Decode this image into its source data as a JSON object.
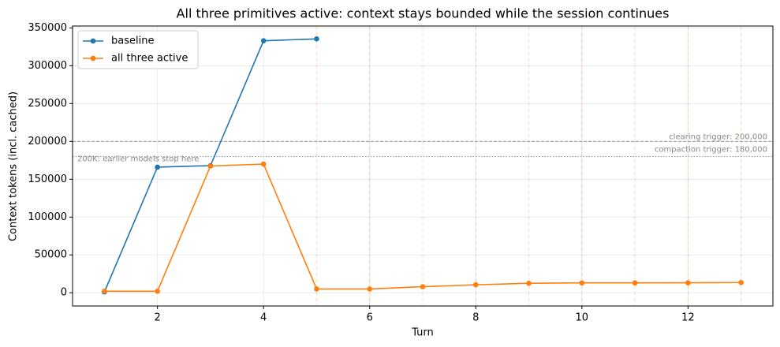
{
  "chart_data": {
    "type": "line",
    "title": "All three primitives active: context stays bounded while the session continues",
    "x_label": "Turn",
    "y_label": "Context tokens (incl. cached)",
    "x": [
      1,
      2,
      3,
      4,
      5,
      6,
      7,
      8,
      9,
      10,
      11,
      12,
      13
    ],
    "series": [
      {
        "name": "baseline",
        "color": "#1f77b4",
        "values": [
          1000,
          166000,
          168000,
          333000,
          335500,
          null,
          null,
          null,
          null,
          null,
          null,
          null,
          null
        ]
      },
      {
        "name": "all three active",
        "color": "#ff7f0e",
        "values": [
          2000,
          2000,
          167500,
          170000,
          5000,
          5000,
          8000,
          10500,
          12500,
          13000,
          13000,
          13200,
          13500
        ]
      }
    ],
    "xlim": [
      0.4,
      13.6
    ],
    "ylim": [
      -17500,
      352500
    ],
    "xticks": [
      2,
      4,
      6,
      8,
      10,
      12
    ],
    "yticks": [
      0,
      50000,
      100000,
      150000,
      200000,
      250000,
      300000,
      350000
    ],
    "grid": true,
    "legend": "upper left",
    "hlines": [
      {
        "value": 200000,
        "label": "clearing trigger: 200,000",
        "style": "dashed"
      },
      {
        "value": 180000,
        "label": "compaction trigger: 180,000",
        "style": "dotted"
      }
    ],
    "annotation": "200K: earlier models stop here",
    "event_lines": [
      5,
      6,
      7,
      8,
      9,
      10,
      11,
      12,
      13
    ],
    "event_color": "#ff7f0e"
  }
}
